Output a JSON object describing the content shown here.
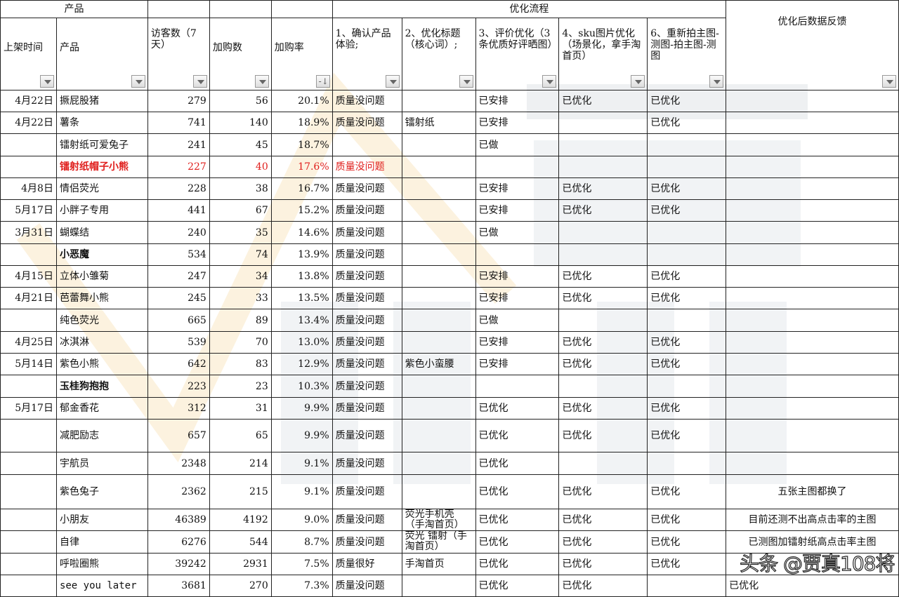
{
  "header": {
    "group_product": "产品",
    "group_flow": "优化流程",
    "columns": [
      "上架时间",
      "产品",
      "访客数（7天）",
      "加购数",
      "加购率",
      "1、确认产品体验;",
      "2、优化标题（核心词）;",
      "3、评价优化（3条优质好评晒图）",
      "4、sku图片优化（场景化，拿手淘首页）",
      "6、重新拍主图-测图-拍主图-测图",
      "优化后数据反馈"
    ],
    "sorted_column": "加购率"
  },
  "rows": [
    {
      "date": "4月22日",
      "product": "撅屁股猪",
      "visitors": "279",
      "adds": "56",
      "rate": "20.1%",
      "s1": "质量没问题",
      "s2": "",
      "s3": "已安排",
      "s4": "已优化",
      "s6": "已优化",
      "feedback": ""
    },
    {
      "date": "4月22日",
      "product": "薯条",
      "visitors": "741",
      "adds": "140",
      "rate": "18.9%",
      "s1": "质量没问题",
      "s2": "镭射纸",
      "s3": "已安排",
      "s4": "",
      "s6": "已优化",
      "feedback": ""
    },
    {
      "date": "",
      "product": "镭射纸可爱兔子",
      "visitors": "241",
      "adds": "45",
      "rate": "18.7%",
      "s1": "",
      "s2": "",
      "s3": "已做",
      "s4": "",
      "s6": "",
      "feedback": ""
    },
    {
      "date": "",
      "product": "镭射纸帽子小熊",
      "visitors": "227",
      "adds": "40",
      "rate": "17.6%",
      "s1": "质量没问题",
      "s2": "",
      "s3": "",
      "s4": "",
      "s6": "",
      "feedback": "",
      "style": "red"
    },
    {
      "date": "4月8日",
      "product": "情侣荧光",
      "visitors": "228",
      "adds": "38",
      "rate": "16.7%",
      "s1": "质量没问题",
      "s2": "",
      "s3": "已安排",
      "s4": "已优化",
      "s6": "已优化",
      "feedback": ""
    },
    {
      "date": "5月17日",
      "product": "小胖子专用",
      "visitors": "441",
      "adds": "67",
      "rate": "15.2%",
      "s1": "质量没问题",
      "s2": "",
      "s3": "已安排",
      "s4": "已优化",
      "s6": "已优化",
      "feedback": ""
    },
    {
      "date": "3月31日",
      "product": "蝴蝶结",
      "visitors": "240",
      "adds": "35",
      "rate": "14.6%",
      "s1": "质量没问题",
      "s2": "",
      "s3": "已做",
      "s4": "",
      "s6": "",
      "feedback": ""
    },
    {
      "date": "",
      "product": "小恶魔",
      "visitors": "534",
      "adds": "74",
      "rate": "13.9%",
      "s1": "质量没问题",
      "s2": "",
      "s3": "",
      "s4": "",
      "s6": "",
      "feedback": "",
      "style": "bold"
    },
    {
      "date": "4月15日",
      "product": "立体小雏菊",
      "visitors": "247",
      "adds": "34",
      "rate": "13.8%",
      "s1": "质量没问题",
      "s2": "",
      "s3": "已安排",
      "s4": "已优化",
      "s6": "已优化",
      "feedback": ""
    },
    {
      "date": "4月21日",
      "product": "芭蕾舞小熊",
      "visitors": "245",
      "adds": "33",
      "rate": "13.5%",
      "s1": "质量没问题",
      "s2": "",
      "s3": "已安排",
      "s4": "已优化",
      "s6": "已优化",
      "feedback": ""
    },
    {
      "date": "",
      "product": "纯色荧光",
      "visitors": "665",
      "adds": "89",
      "rate": "13.4%",
      "s1": "质量没问题",
      "s2": "",
      "s3": "已做",
      "s4": "",
      "s6": "",
      "feedback": ""
    },
    {
      "date": "4月25日",
      "product": "冰淇淋",
      "visitors": "539",
      "adds": "70",
      "rate": "13.0%",
      "s1": "质量没问题",
      "s2": "",
      "s3": "已安排",
      "s4": "已优化",
      "s6": "已优化",
      "feedback": ""
    },
    {
      "date": "5月14日",
      "product": "紫色小熊",
      "visitors": "642",
      "adds": "83",
      "rate": "12.9%",
      "s1": "质量没问题",
      "s2": "紫色小蛮腰",
      "s3": "已安排",
      "s4": "已优化",
      "s6": "已优化",
      "feedback": ""
    },
    {
      "date": "",
      "product": "玉桂狗抱抱",
      "visitors": "223",
      "adds": "23",
      "rate": "10.3%",
      "s1": "质量没问题",
      "s2": "",
      "s3": "",
      "s4": "",
      "s6": "",
      "feedback": "",
      "style": "bold"
    },
    {
      "date": "5月17日",
      "product": "郁金香花",
      "visitors": "312",
      "adds": "31",
      "rate": "9.9%",
      "s1": "质量没问题",
      "s2": "",
      "s3": "已优化",
      "s4": "已优化",
      "s6": "已优化",
      "feedback": ""
    },
    {
      "date": "",
      "product": "减肥励志",
      "visitors": "657",
      "adds": "65",
      "rate": "9.9%",
      "s1": "质量没问题",
      "s2": "",
      "s3": "已优化",
      "s4": "已优化",
      "s6": "已优化",
      "feedback": ""
    },
    {
      "date": "",
      "product": "宇航员",
      "visitors": "2348",
      "adds": "214",
      "rate": "9.1%",
      "s1": "质量没问题",
      "s2": "",
      "s3": "已优化",
      "s4": "",
      "s6": "",
      "feedback": ""
    },
    {
      "date": "",
      "product": "紫色兔子",
      "visitors": "2362",
      "adds": "215",
      "rate": "9.1%",
      "s1": "质量没问题",
      "s2": "",
      "s3": "已优化",
      "s4": "已优化",
      "s6": "已优化",
      "feedback": "五张主图都换了"
    },
    {
      "date": "",
      "product": "小朋友",
      "visitors": "46389",
      "adds": "4192",
      "rate": "9.0%",
      "s1": "质量没问题",
      "s2": "荧光手机壳（手淘首页）",
      "s3": "已优化",
      "s4": "已优化",
      "s6": "已优化",
      "feedback": "目前还测不出高点击率的主图"
    },
    {
      "date": "",
      "product": "自律",
      "visitors": "6276",
      "adds": "544",
      "rate": "8.7%",
      "s1": "质量没问题",
      "s2": "荧光 镭射（手淘首页）",
      "s3": "已优化",
      "s4": "已优化",
      "s6": "已优化",
      "feedback": "已测图加镭射纸高点击率主图"
    },
    {
      "date": "",
      "product": "呼啦圈熊",
      "visitors": "39242",
      "adds": "2931",
      "rate": "7.5%",
      "s1": "质量很好",
      "s2": "手淘首页",
      "s3": "已优化",
      "s4": "已优化",
      "s6": "已优化",
      "feedback": ""
    },
    {
      "date": "",
      "product": "see you  later",
      "visitors": "3681",
      "adds": "270",
      "rate": "7.3%",
      "s1": "质量没问题",
      "s2": "",
      "s3": "已优化",
      "s4": "已优化",
      "s6": "",
      "feedback": "已优化",
      "feedback_align": "left"
    }
  ],
  "watermark": "头条 @贾真108将",
  "colors": {
    "highlight_red": "#e0201e",
    "grid": "#222222",
    "watermark_orange": "#f5d9a8",
    "watermark_gray": "#eef0f2"
  }
}
